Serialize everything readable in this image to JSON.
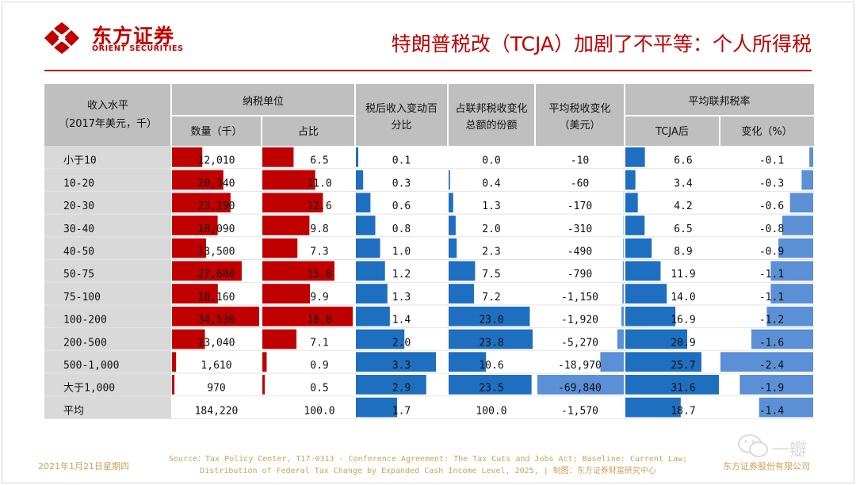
{
  "header": {
    "logo_cn": "东方证券",
    "logo_en": "ORIENT SECURITIES",
    "title": "特朗普税改（TCJA）加剧了不平等：个人所得税"
  },
  "colors": {
    "brand_red": "#c00000",
    "bar_red": "#c00000",
    "bar_blue": "#1f6fc0",
    "bar_light_blue": "#5b8fd6",
    "header_gray": "#bfbfbf",
    "footer_gold": "#c9a35c"
  },
  "chart_data": {
    "type": "table",
    "title": "特朗普税改（TCJA）加剧了不平等：个人所得税",
    "header_row1": {
      "income": "收入水平",
      "income_sub": "（2017年美元，千）",
      "units": "纳税单位",
      "after_tax": "税后收入变动百分比",
      "share_change": "占联邦税收变化总额的份额",
      "avg_change": "平均税收变化（美元）",
      "avg_rate": "平均联邦税率"
    },
    "header_row2": {
      "count": "数量（千）",
      "share": "占比",
      "rate_after": "TCJA后",
      "rate_change": "变化（%）"
    },
    "rows": [
      {
        "label": "小于10",
        "count": "12,010",
        "share": "6.5",
        "after_tax": "0.1",
        "fed_share": "0.0",
        "avg_change": "-10",
        "rate": "6.6",
        "rate_change": "-0.1"
      },
      {
        "label": "10-20",
        "count": "20,340",
        "share": "11.0",
        "after_tax": "0.3",
        "fed_share": "0.4",
        "avg_change": "-60",
        "rate": "3.4",
        "rate_change": "-0.3"
      },
      {
        "label": "20-30",
        "count": "23,190",
        "share": "12.6",
        "after_tax": "0.6",
        "fed_share": "1.3",
        "avg_change": "-170",
        "rate": "4.2",
        "rate_change": "-0.6"
      },
      {
        "label": "30-40",
        "count": "18,090",
        "share": "9.8",
        "after_tax": "0.8",
        "fed_share": "2.0",
        "avg_change": "-310",
        "rate": "6.5",
        "rate_change": "-0.8"
      },
      {
        "label": "40-50",
        "count": "13,500",
        "share": "7.3",
        "after_tax": "1.0",
        "fed_share": "2.3",
        "avg_change": "-490",
        "rate": "8.9",
        "rate_change": "-0.9"
      },
      {
        "label": "50-75",
        "count": "27,600",
        "share": "15.0",
        "after_tax": "1.2",
        "fed_share": "7.5",
        "avg_change": "-790",
        "rate": "11.9",
        "rate_change": "-1.1"
      },
      {
        "label": "75-100",
        "count": "18,160",
        "share": "9.9",
        "after_tax": "1.3",
        "fed_share": "7.2",
        "avg_change": "-1,150",
        "rate": "14.0",
        "rate_change": "-1.1"
      },
      {
        "label": "100-200",
        "count": "34,530",
        "share": "18.8",
        "after_tax": "1.4",
        "fed_share": "23.0",
        "avg_change": "-1,920",
        "rate": "16.9",
        "rate_change": "-1.2"
      },
      {
        "label": "200-500",
        "count": "13,040",
        "share": "7.1",
        "after_tax": "2.0",
        "fed_share": "23.8",
        "avg_change": "-5,270",
        "rate": "20.9",
        "rate_change": "-1.6"
      },
      {
        "label": "500-1,000",
        "count": "1,610",
        "share": "0.9",
        "after_tax": "3.3",
        "fed_share": "10.6",
        "avg_change": "-18,970",
        "rate": "25.7",
        "rate_change": "-2.4"
      },
      {
        "label": "大于1,000",
        "count": "970",
        "share": "0.5",
        "after_tax": "2.9",
        "fed_share": "23.5",
        "avg_change": "-69,840",
        "rate": "31.6",
        "rate_change": "-1.9"
      },
      {
        "label": "平均",
        "count": "184,220",
        "share": "100.0",
        "after_tax": "1.7",
        "fed_share": "100.0",
        "avg_change": "-1,570",
        "rate": "18.7",
        "rate_change": "-1.4"
      }
    ],
    "bar_scales": {
      "count_max": 34530,
      "share_max": 18.8,
      "after_tax_max": 3.3,
      "fed_share_max": 23.8,
      "avg_change_max": 69840,
      "rate_max": 31.6,
      "rate_change_max": 2.4
    },
    "bar_groups": {
      "count": "units_only_nonaverage",
      "share": "units_only_nonaverage"
    }
  },
  "footer": {
    "date": "2021年1月21日星期四",
    "source_line1": "Source：Tax Policy Center, T17-0313 - Conference Agreement: The Tax Cuts and Jobs Act; Baseline: Current Law;",
    "source_line2": "Distribution of Federal Tax Change by Expanded Cash Income Level, 2025, | 制图：东方证券财富研究中心",
    "company": "东方证券股份有限公司",
    "watermark": "一瓣"
  }
}
